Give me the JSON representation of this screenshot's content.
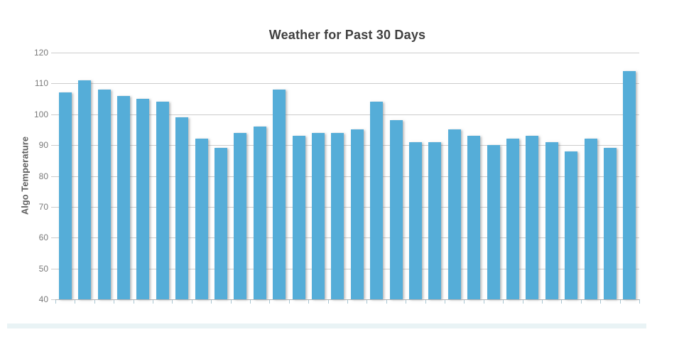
{
  "chart_data": {
    "type": "bar",
    "title": "Weather for Past 30 Days",
    "xlabel": "",
    "ylabel": "Algo Temperature",
    "values": [
      107,
      111,
      108,
      106,
      105,
      104,
      99,
      92,
      89,
      94,
      96,
      108,
      93,
      94,
      94,
      95,
      104,
      98,
      91,
      91,
      95,
      93,
      90,
      92,
      93,
      91,
      88,
      92,
      89,
      114
    ],
    "bar_count": 30,
    "ylim": [
      40,
      120
    ],
    "yticks": [
      120,
      110,
      100,
      90,
      80,
      70,
      60,
      50,
      40
    ],
    "grid": true,
    "legend": "none",
    "x_tick_labels": "none",
    "colors": {
      "bar": "#55ADD8",
      "grid": "#cccccc",
      "axis": "#b0b0b0",
      "tick": "#a9c6d2",
      "title": "#404040",
      "tick_label": "#7a7a7a",
      "y_axis_title": "#5f5f5f",
      "bottom_strip": "#e9f3f5",
      "background": "#ffffff"
    }
  }
}
